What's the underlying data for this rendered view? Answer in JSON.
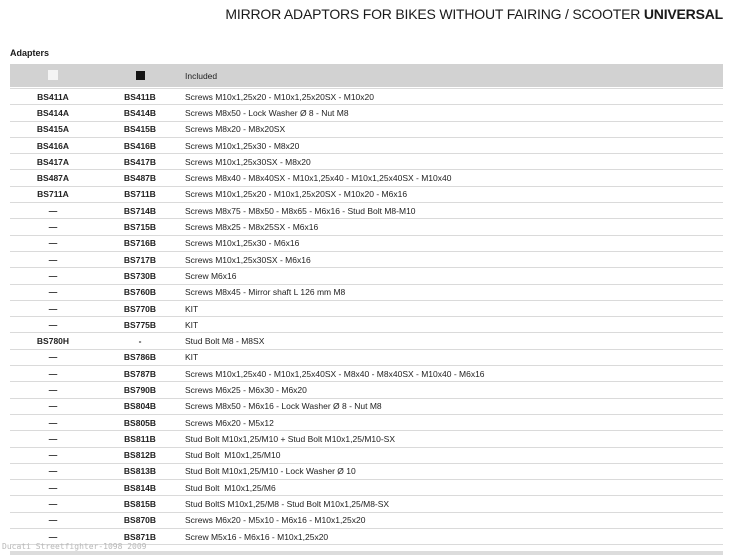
{
  "title": {
    "regular": "MIRROR ADAPTORS FOR BIKES WITHOUT FAIRING / SCOOTER ",
    "bold": "UNIVERSAL"
  },
  "section_label": "Adapters",
  "table": {
    "header": {
      "col_a_icon": "white-square-icon",
      "col_b_icon": "black-square-icon",
      "included_label": "Included"
    },
    "rows": [
      {
        "a": "BS411A",
        "b": "BS411B",
        "included": "Screws M10x1,25x20 - M10x1,25x20SX - M10x20"
      },
      {
        "a": "BS414A",
        "b": "BS414B",
        "included": "Screws M8x50 - Lock Washer Ø 8 - Nut M8"
      },
      {
        "a": "BS415A",
        "b": "BS415B",
        "included": "Screws M8x20 - M8x20SX"
      },
      {
        "a": "BS416A",
        "b": "BS416B",
        "included": "Screws M10x1,25x30 - M8x20"
      },
      {
        "a": "BS417A",
        "b": "BS417B",
        "included": "Screws M10x1,25x30SX - M8x20"
      },
      {
        "a": "BS487A",
        "b": "BS487B",
        "included": "Screws M8x40 - M8x40SX - M10x1,25x40 - M10x1,25x40SX - M10x40"
      },
      {
        "a": "BS711A",
        "b": "BS711B",
        "included": "Screws M10x1,25x20 - M10x1,25x20SX - M10x20 - M6x16"
      },
      {
        "a": "—",
        "b": "BS714B",
        "included": "Screws M8x75 - M8x50 - M8x65 - M6x16 - Stud Bolt M8-M10"
      },
      {
        "a": "—",
        "b": "BS715B",
        "included": "Screws M8x25 - M8x25SX - M6x16"
      },
      {
        "a": "—",
        "b": "BS716B",
        "included": "Screws M10x1,25x30 - M6x16"
      },
      {
        "a": "—",
        "b": "BS717B",
        "included": "Screws M10x1,25x30SX - M6x16"
      },
      {
        "a": "—",
        "b": "BS730B",
        "included": "Screw M6x16"
      },
      {
        "a": "—",
        "b": "BS760B",
        "included": "Screws M8x45 - Mirror shaft L 126 mm M8"
      },
      {
        "a": "—",
        "b": "BS770B",
        "included": "KIT"
      },
      {
        "a": "—",
        "b": "BS775B",
        "included": "KIT"
      },
      {
        "a": "BS780H",
        "b": "-",
        "included": "Stud Bolt M8 - M8SX"
      },
      {
        "a": "—",
        "b": "BS786B",
        "included": "KIT"
      },
      {
        "a": "—",
        "b": "BS787B",
        "included": "Screws M10x1,25x40 - M10x1,25x40SX - M8x40 - M8x40SX - M10x40 - M6x16"
      },
      {
        "a": "—",
        "b": "BS790B",
        "included": "Screws M6x25 - M6x30 - M6x20"
      },
      {
        "a": "—",
        "b": "BS804B",
        "included": "Screws M8x50 - M6x16 - Lock Washer Ø 8 - Nut M8"
      },
      {
        "a": "—",
        "b": "BS805B",
        "included": "Screws M6x20 - M5x12"
      },
      {
        "a": "—",
        "b": "BS811B",
        "included": "Stud Bolt M10x1,25/M10 + Stud Bolt M10x1,25/M10-SX"
      },
      {
        "a": "—",
        "b": "BS812B",
        "included": "Stud Bolt  M10x1,25/M10"
      },
      {
        "a": "—",
        "b": "BS813B",
        "included": "Stud Bolt M10x1,25/M10 - Lock Washer Ø 10"
      },
      {
        "a": "—",
        "b": "BS814B",
        "included": "Stud Bolt  M10x1,25/M6"
      },
      {
        "a": "—",
        "b": "BS815B",
        "included": "Stud BoltS M10x1,25/M8 - Stud Bolt M10x1,25/M8-SX"
      },
      {
        "a": "—",
        "b": "BS870B",
        "included": "Screws M6x20 - M5x10 - M6x16 - M10x1,25x20"
      },
      {
        "a": "—",
        "b": "BS871B",
        "included": "Screw M5x16 - M6x16 - M10x1,25x20"
      }
    ]
  },
  "watermark": "Ducati Streetfighter-1098 2009",
  "colors": {
    "header_bg": "#d2d2d2",
    "row_border": "#dadada",
    "white_square": "#f4f4f4",
    "black_square": "#141414",
    "watermark_text": "#b8b8b8",
    "bottom_band": "#dcdcdc",
    "text": "#222222"
  }
}
